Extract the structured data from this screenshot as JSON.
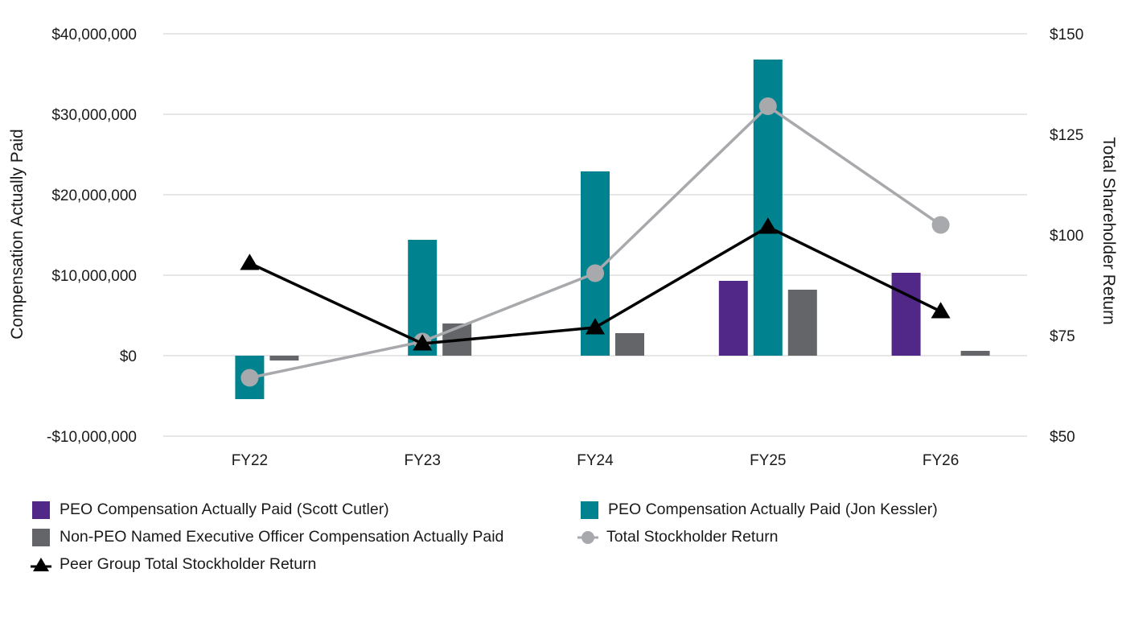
{
  "chart_data": {
    "type": "bar",
    "categories": [
      "FY22",
      "FY23",
      "FY24",
      "FY25",
      "FY26"
    ],
    "left_axis": {
      "title": "Compensation Actually Paid",
      "ylim": [
        -10000000,
        40000000
      ],
      "ticks": [
        -10000000,
        0,
        10000000,
        20000000,
        30000000,
        40000000
      ],
      "tick_labels": [
        "-$10,000,000",
        "$0",
        "$10,000,000",
        "$20,000,000",
        "$30,000,000",
        "$40,000,000"
      ]
    },
    "right_axis": {
      "title": "Total Shareholder Return",
      "ylim": [
        50,
        150
      ],
      "ticks": [
        50,
        75,
        100,
        125,
        150
      ],
      "tick_labels": [
        "$50",
        "$75",
        "$100",
        "$125",
        "$150"
      ]
    },
    "grid": true,
    "legend_position": "bottom",
    "series": [
      {
        "name": "PEO Compensation Actually Paid (Scott Cutler)",
        "kind": "bar",
        "axis": "left",
        "color": "#512888",
        "values": [
          null,
          null,
          null,
          9300000,
          10300000
        ]
      },
      {
        "name": "PEO Compensation Actually Paid (Jon Kessler)",
        "kind": "bar",
        "axis": "left",
        "color": "#00838f",
        "values": [
          -5400000,
          14400000,
          22900000,
          36800000,
          null
        ]
      },
      {
        "name": "Non-PEO Named Executive Officer Compensation Actually Paid",
        "kind": "bar",
        "axis": "left",
        "color": "#636569",
        "values": [
          -600000,
          4000000,
          2800000,
          8200000,
          600000
        ]
      },
      {
        "name": "Total Stockholder Return",
        "kind": "line",
        "marker": "circle",
        "axis": "right",
        "color": "#a7a9ac",
        "values": [
          64.5,
          73.5,
          90.5,
          132,
          102.5
        ]
      },
      {
        "name": "Peer Group Total Stockholder Return",
        "kind": "line",
        "marker": "triangle",
        "axis": "right",
        "color": "#000000",
        "values": [
          93,
          73,
          77,
          102,
          81
        ]
      }
    ]
  },
  "legend": {
    "items": [
      {
        "label": "PEO Compensation Actually Paid (Scott Cutler)",
        "icon": "square-swatch",
        "color": "#512888"
      },
      {
        "label": "PEO Compensation Actually Paid (Jon Kessler)",
        "icon": "square-swatch",
        "color": "#00838f"
      },
      {
        "label": "Non-PEO Named Executive Officer Compensation Actually Paid",
        "icon": "square-swatch",
        "color": "#636569"
      },
      {
        "label": "Total Stockholder Return",
        "icon": "line-circle-marker",
        "color": "#a7a9ac"
      },
      {
        "label": "Peer Group Total Stockholder Return",
        "icon": "line-triangle-marker",
        "color": "#000000"
      }
    ]
  }
}
